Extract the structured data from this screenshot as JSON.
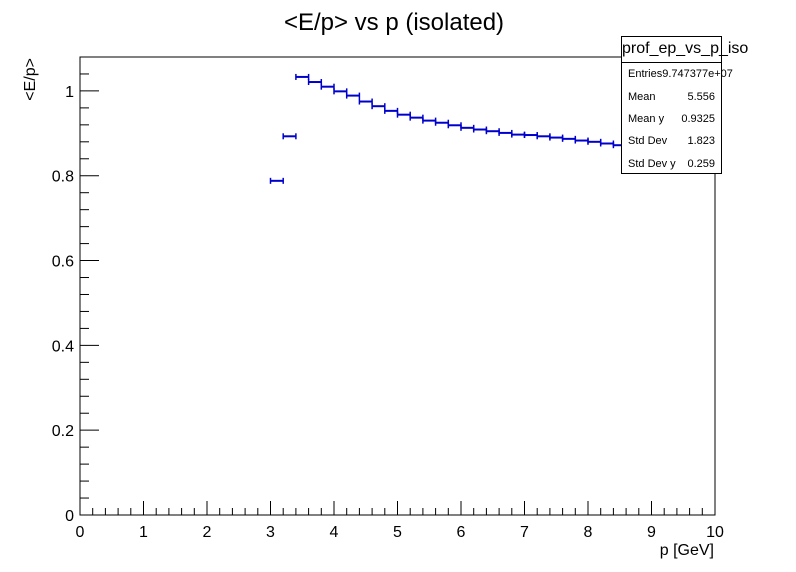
{
  "chart_data": {
    "type": "scatter",
    "title": "<E/p> vs p (isolated)",
    "xlabel": "p [GeV]",
    "ylabel": "<E/p>",
    "xlim": [
      0,
      10
    ],
    "ylim": [
      0,
      1.08
    ],
    "x_ticks": [
      "0",
      "1",
      "2",
      "3",
      "4",
      "5",
      "6",
      "7",
      "8",
      "9",
      "10"
    ],
    "y_ticks": [
      "0",
      "0.2",
      "0.4",
      "0.6",
      "0.8",
      "1"
    ],
    "y_tick_values": [
      0,
      0.2,
      0.4,
      0.6,
      0.8,
      1.0
    ],
    "bin_half_width": 0.1,
    "series_color": "#0000cc",
    "series": [
      {
        "x": [
          3.1,
          3.3,
          3.5,
          3.7,
          3.9,
          4.1,
          4.3,
          4.5,
          4.7,
          4.9,
          5.1,
          5.3,
          5.5,
          5.7,
          5.9,
          6.1,
          6.3,
          6.5,
          6.7,
          6.9,
          7.1,
          7.3,
          7.5,
          7.7,
          7.9,
          8.1,
          8.3,
          8.5,
          8.7
        ],
        "y": [
          0.788,
          0.893,
          1.033,
          1.021,
          1.01,
          0.999,
          0.989,
          0.975,
          0.964,
          0.953,
          0.944,
          0.937,
          0.93,
          0.925,
          0.919,
          0.913,
          0.909,
          0.905,
          0.901,
          0.897,
          0.896,
          0.893,
          0.89,
          0.887,
          0.883,
          0.88,
          0.876,
          0.872,
          0.868
        ]
      }
    ],
    "legend": "top-right",
    "grid": false
  },
  "stats_box": {
    "title": "prof_ep_vs_p_iso",
    "rows": [
      {
        "label": "Entries",
        "value": "9.747377e+07"
      },
      {
        "label": "Mean",
        "value": "5.556"
      },
      {
        "label": "Mean y",
        "value": "0.9325"
      },
      {
        "label": "Std Dev",
        "value": "1.823"
      },
      {
        "label": "Std Dev y",
        "value": "0.259"
      }
    ]
  }
}
